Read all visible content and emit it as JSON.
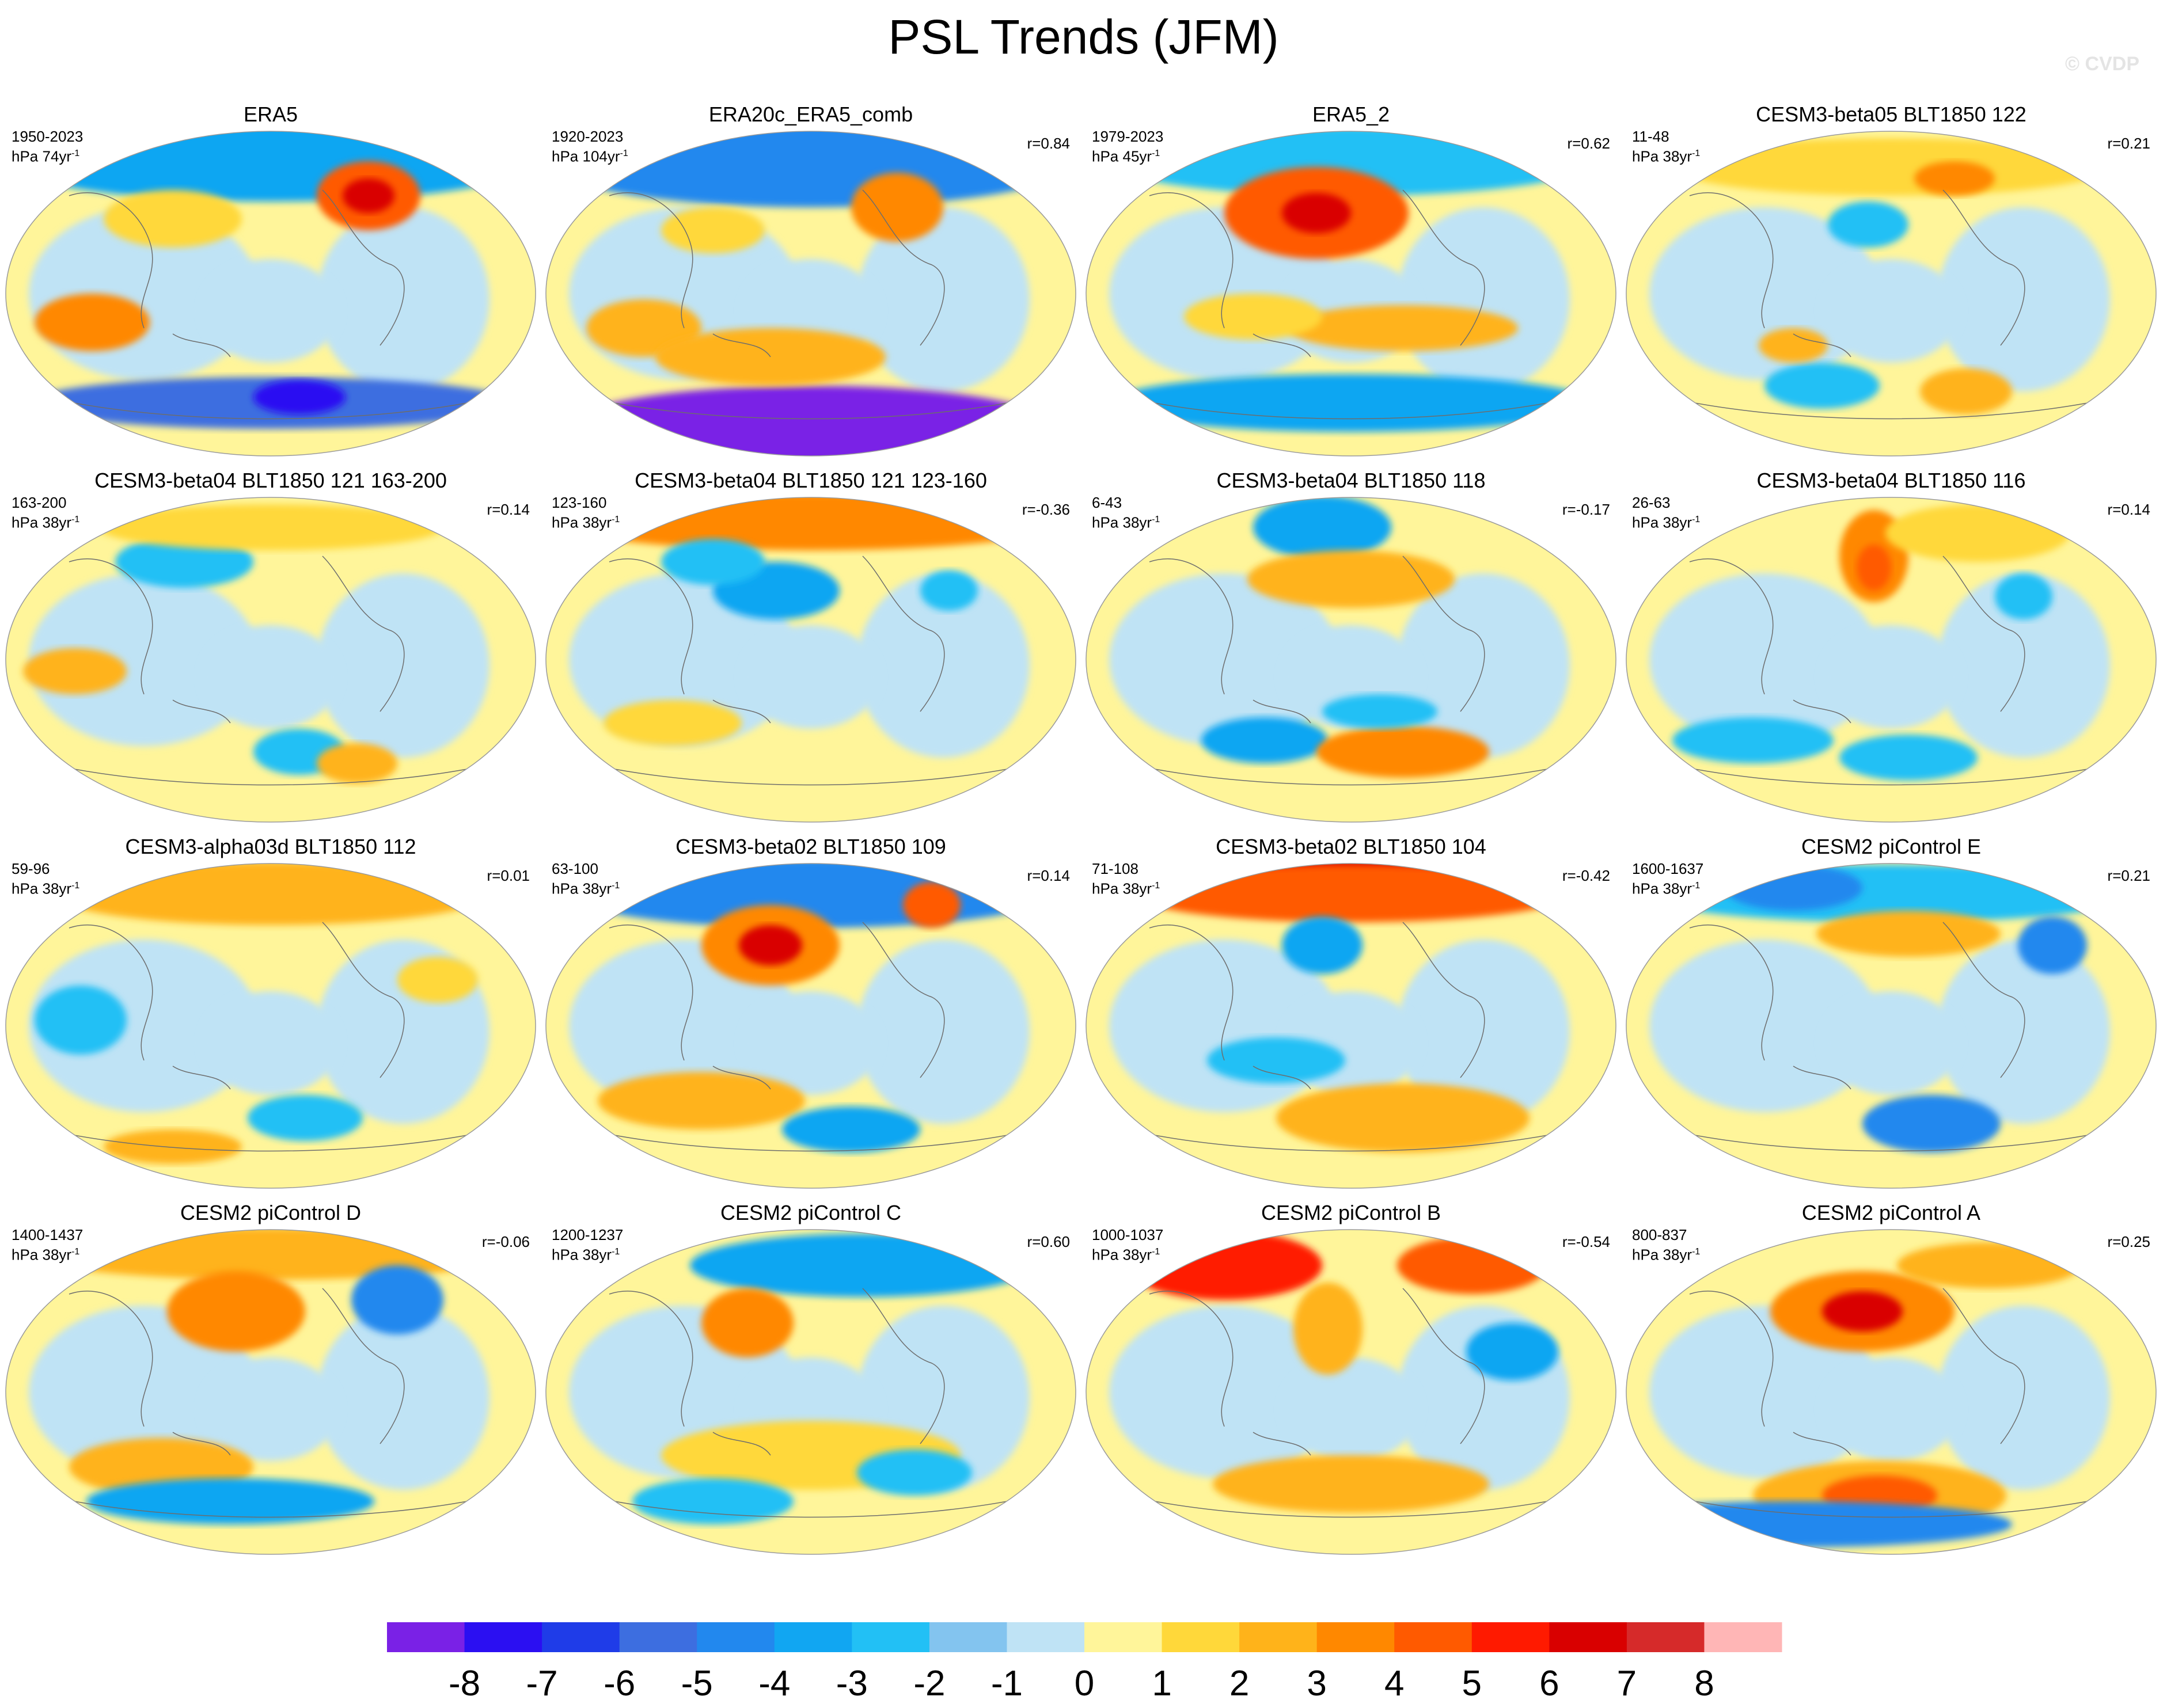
{
  "title": "PSL Trends (JFM)",
  "watermark": "© CVDP",
  "colorbar": {
    "labels": [
      "-8",
      "-7",
      "-6",
      "-5",
      "-4",
      "-3",
      "-2",
      "-1",
      "0",
      "1",
      "2",
      "3",
      "4",
      "5",
      "6",
      "7",
      "8"
    ],
    "colors": [
      "#7a21e6",
      "#2b0ff2",
      "#1f3ce8",
      "#3d6ee0",
      "#2288ee",
      "#11a6f2",
      "#22c0f5",
      "#83c4ef",
      "#bfe3f5",
      "#fff59a",
      "#ffd83a",
      "#ffb31a",
      "#ff8800",
      "#ff5a00",
      "#ff1a00",
      "#d90000",
      "#d62a2a",
      "#ffb6b6"
    ]
  },
  "panels": [
    {
      "title": "ERA5",
      "years": "1950-2023",
      "units": "hPa 74yr",
      "r": ""
    },
    {
      "title": "ERA20c_ERA5_comb",
      "years": "1920-2023",
      "units": "hPa 104yr",
      "r": "r=0.84"
    },
    {
      "title": "ERA5_2",
      "years": "1979-2023",
      "units": "hPa 45yr",
      "r": "r=0.62"
    },
    {
      "title": "CESM3-beta05 BLT1850 122",
      "years": "11-48",
      "units": "hPa 38yr",
      "r": "r=0.21"
    },
    {
      "title": "CESM3-beta04 BLT1850 121 163-200",
      "years": "163-200",
      "units": "hPa 38yr",
      "r": "r=0.14"
    },
    {
      "title": "CESM3-beta04 BLT1850 121 123-160",
      "years": "123-160",
      "units": "hPa 38yr",
      "r": "r=-0.36"
    },
    {
      "title": "CESM3-beta04 BLT1850 118",
      "years": "6-43",
      "units": "hPa 38yr",
      "r": "r=-0.17"
    },
    {
      "title": "CESM3-beta04 BLT1850 116",
      "years": "26-63",
      "units": "hPa 38yr",
      "r": "r=0.14"
    },
    {
      "title": "CESM3-alpha03d BLT1850 112",
      "years": "59-96",
      "units": "hPa 38yr",
      "r": "r=0.01"
    },
    {
      "title": "CESM3-beta02 BLT1850 109",
      "years": "63-100",
      "units": "hPa 38yr",
      "r": "r=0.14"
    },
    {
      "title": "CESM3-beta02 BLT1850 104",
      "years": "71-108",
      "units": "hPa 38yr",
      "r": "r=-0.42"
    },
    {
      "title": "CESM2 piControl E",
      "years": "1600-1637",
      "units": "hPa 38yr",
      "r": "r=0.21"
    },
    {
      "title": "CESM2 piControl D",
      "years": "1400-1437",
      "units": "hPa 38yr",
      "r": "r=-0.06"
    },
    {
      "title": "CESM2 piControl C",
      "years": "1200-1237",
      "units": "hPa 38yr",
      "r": "r=0.60"
    },
    {
      "title": "CESM2 piControl B",
      "years": "1000-1037",
      "units": "hPa 38yr",
      "r": "r=-0.54"
    },
    {
      "title": "CESM2 piControl A",
      "years": "800-837",
      "units": "hPa 38yr",
      "r": "r=0.25"
    }
  ]
}
